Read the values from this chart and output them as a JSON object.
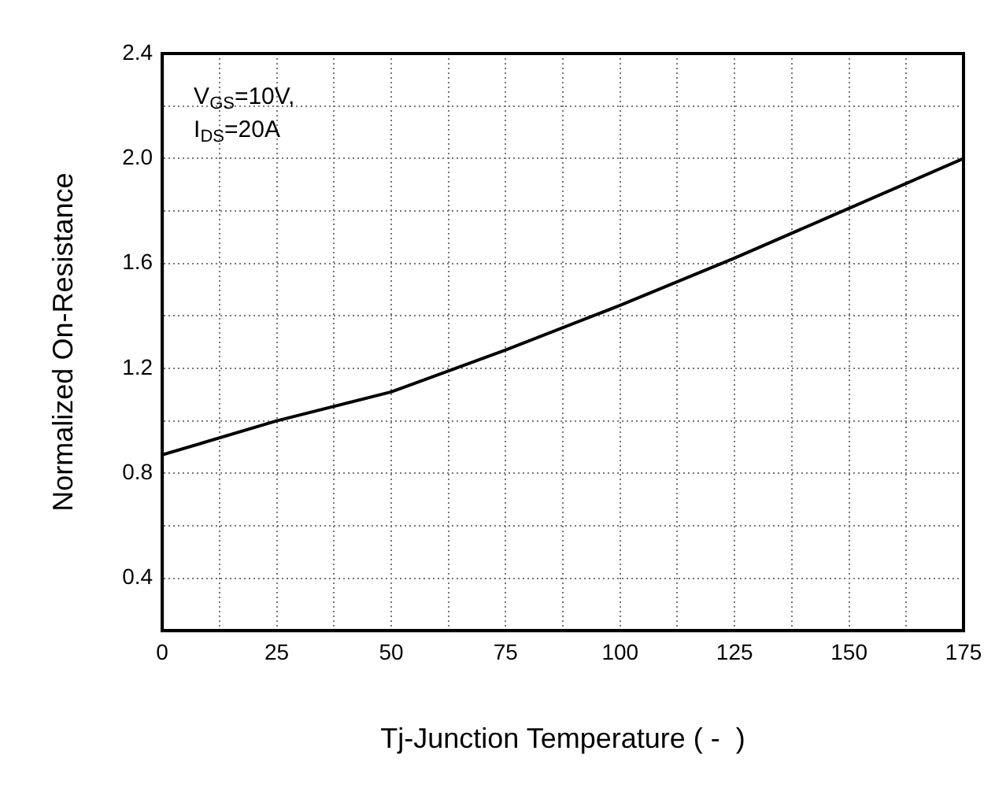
{
  "chart_data": {
    "type": "line",
    "xlabel": "Tj-Junction Temperature ( -  )",
    "ylabel": "Normalized On-Resistance",
    "annotations": [
      "V$_{GS}$=10V,",
      "I$_{DS}$=20A"
    ],
    "x": [
      0,
      25,
      50,
      75,
      100,
      125,
      150,
      175
    ],
    "series": [
      {
        "color": "#000000",
        "values": [
          0.87,
          1.0,
          1.11,
          1.27,
          1.44,
          1.62,
          1.81,
          2.0
        ]
      }
    ],
    "xlim": [
      0,
      175
    ],
    "xticks": [
      0,
      {
        "value": 12.5,
        "label": null
      },
      25,
      {
        "value": 37.5,
        "label": null
      },
      50,
      {
        "value": 62.5,
        "label": null
      },
      75,
      {
        "value": 87.5,
        "label": null
      },
      100,
      {
        "value": 112.5,
        "label": null
      },
      125,
      {
        "value": 137.5,
        "label": null
      },
      150,
      {
        "value": 162.5,
        "label": null
      },
      175
    ],
    "ylim": [
      0.2,
      2.4
    ],
    "yticks": [
      {
        "value": 0.2,
        "label": null
      },
      0.4,
      {
        "value": 0.6,
        "label": null
      },
      0.8,
      {
        "value": 1.0,
        "label": null
      },
      1.2,
      {
        "value": 1.4,
        "label": null
      },
      1.6,
      {
        "value": 1.8,
        "label": null
      },
      {
        "value": 2.0,
        "label": "2.0"
      },
      {
        "value": 2.2,
        "label": null
      },
      2.4
    ],
    "grid": true,
    "legend": false,
    "marker": "none",
    "line_style": "solid"
  }
}
